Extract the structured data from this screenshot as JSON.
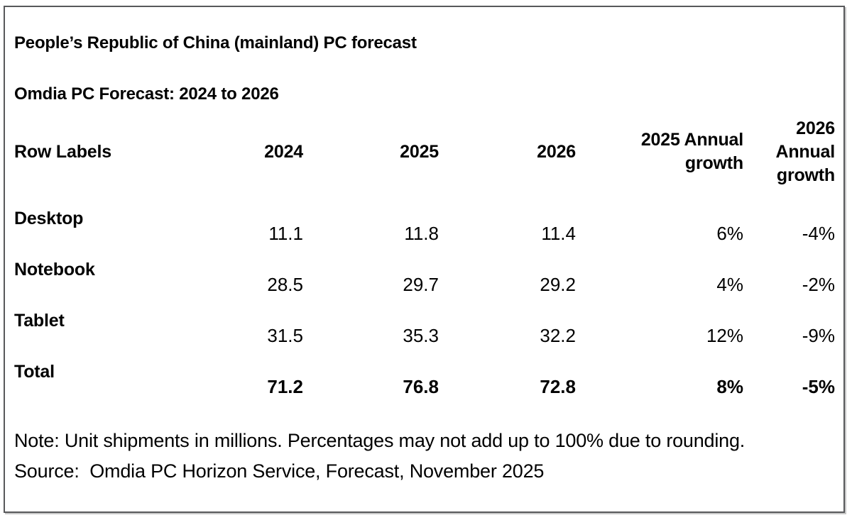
{
  "title": "People’s Republic of China (mainland) PC forecast",
  "subtitle": "Omdia PC Forecast: 2024 to 2026",
  "note": "Note: Unit shipments in millions. Percentages may not add up to 100% due to rounding.",
  "source": "Source:  Omdia PC Horizon Service, Forecast, November 2025",
  "colors": {
    "text": "#000000",
    "border": "#58595b",
    "background": "#ffffff"
  },
  "chart_data": {
    "type": "table",
    "title": "People’s Republic of China (mainland) PC forecast",
    "subtitle": "Omdia PC Forecast: 2024 to 2026",
    "columns": [
      "Row Labels",
      "2024",
      "2025",
      "2026",
      "2025 Annual growth",
      "2026 Annual growth"
    ],
    "rows": [
      [
        "Desktop",
        "11.1",
        "11.8",
        "11.4",
        "6%",
        "-4%"
      ],
      [
        "Notebook",
        "28.5",
        "29.7",
        "29.2",
        "4%",
        "-2%"
      ],
      [
        "Tablet",
        "31.5",
        "35.3",
        "32.2",
        "12%",
        "-9%"
      ],
      [
        "Total",
        "71.2",
        "76.8",
        "72.8",
        "8%",
        "-5%"
      ]
    ],
    "units": "Unit shipments in millions",
    "note": "Note: Unit shipments in millions. Percentages may not add up to 100% due to rounding.",
    "source": "Source:  Omdia PC Horizon Service, Forecast, November 2025",
    "bold_rows": [
      "Total"
    ]
  }
}
